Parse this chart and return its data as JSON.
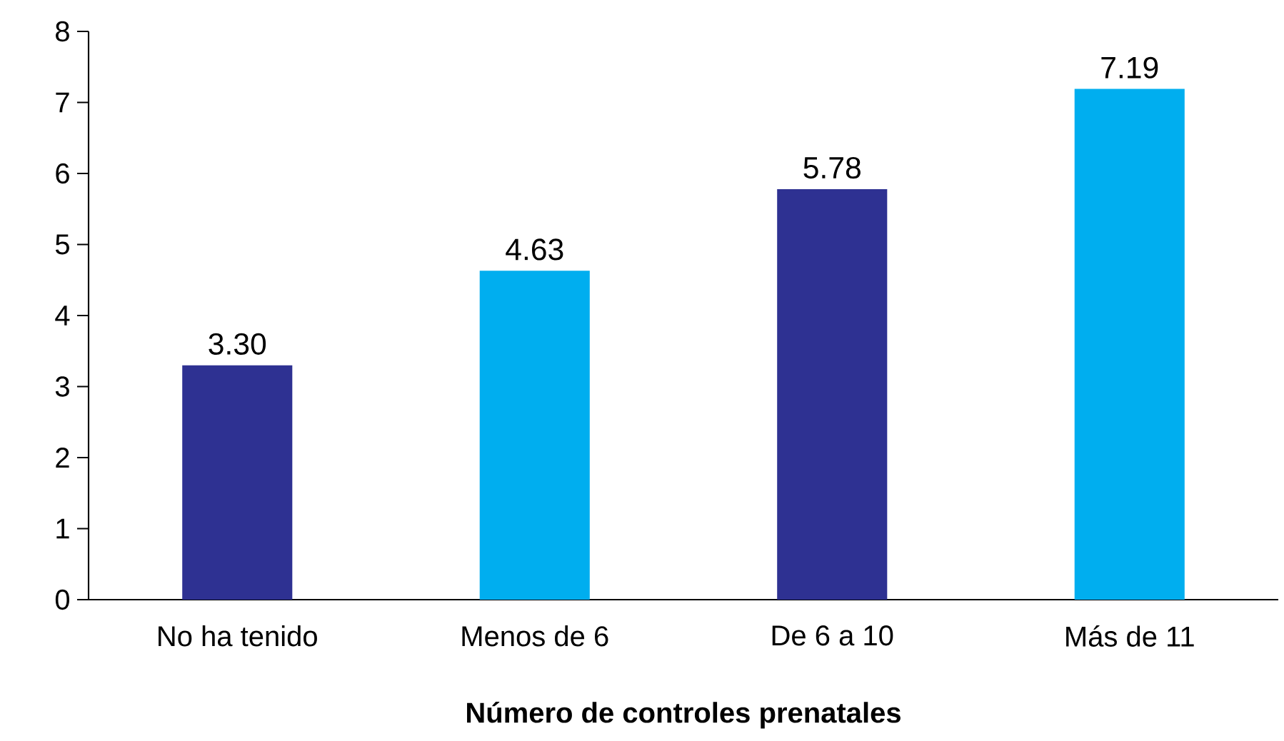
{
  "chart_data": {
    "type": "bar",
    "xlabel": "Número de controles prenatales",
    "categories": [
      "No ha tenido",
      "Menos de 6",
      "De 6 a 10",
      "Más de 11"
    ],
    "values": [
      3.3,
      4.63,
      5.78,
      7.19
    ],
    "value_labels": [
      "3.30",
      "4.63",
      "5.78",
      "7.19"
    ],
    "colors": [
      "#2e3192",
      "#00aeef",
      "#2e3192",
      "#00aeef"
    ],
    "ylim": [
      0,
      8
    ],
    "yticks": [
      0,
      1,
      2,
      3,
      4,
      5,
      6,
      7,
      8
    ],
    "grid": false
  }
}
